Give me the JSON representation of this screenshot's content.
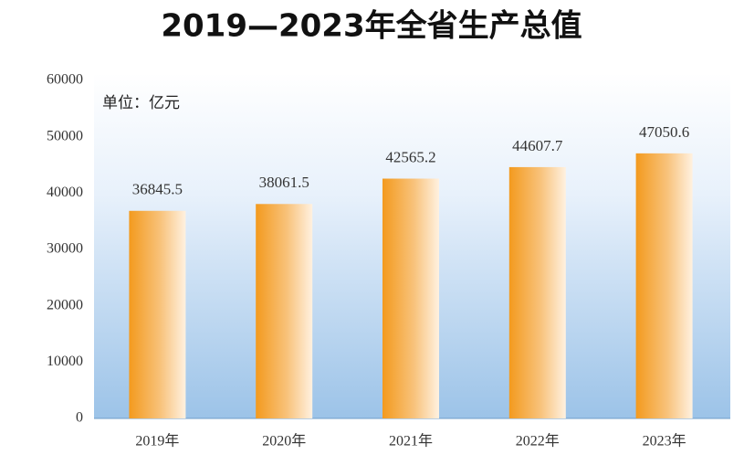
{
  "chart_data": {
    "type": "bar",
    "title": "2019—2023年全省生产总值",
    "unit_label": "单位：亿元",
    "categories": [
      "2019年",
      "2020年",
      "2021年",
      "2022年",
      "2023年"
    ],
    "values": [
      36845.5,
      38061.5,
      42565.2,
      44607.7,
      47050.6
    ],
    "color": "#f39a1e",
    "ylim": [
      0,
      60000
    ],
    "yticks": [
      0,
      10000,
      20000,
      30000,
      40000,
      50000,
      60000
    ],
    "grid": false
  }
}
